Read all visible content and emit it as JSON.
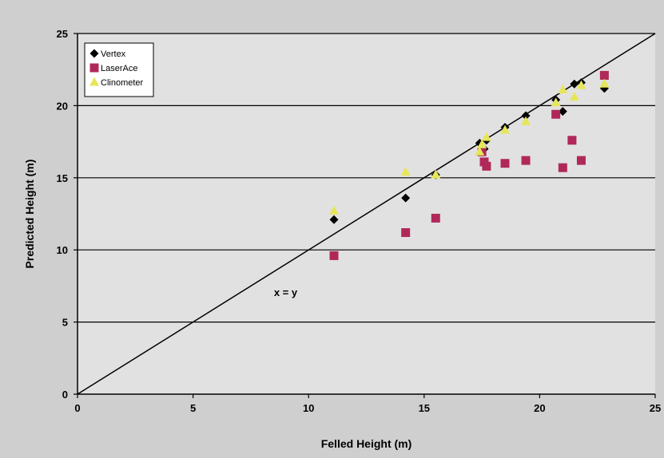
{
  "colors": {
    "outer_background": "#cfcfcf",
    "plot_background": "#e1e1e1",
    "gridline": "#000000",
    "axis": "#000000",
    "reference_line": "#000000"
  },
  "chart_data": {
    "type": "scatter",
    "title": "",
    "xlabel": "Felled Height (m)",
    "ylabel": "Predicted Height (m)",
    "xlim": [
      0,
      25
    ],
    "ylim": [
      0,
      25
    ],
    "xticks": [
      0,
      5,
      10,
      15,
      20,
      25
    ],
    "yticks": [
      0,
      5,
      10,
      15,
      20,
      25
    ],
    "grid": {
      "horizontal": true,
      "vertical": false
    },
    "legend_position": "top-left",
    "annotation": {
      "text": "x = y",
      "x": 8.5,
      "y": 6.8
    },
    "reference_line": {
      "from": [
        0,
        0
      ],
      "to": [
        25,
        25
      ]
    },
    "series": [
      {
        "name": "Vertex",
        "marker": "diamond",
        "color": "#000000",
        "points": [
          [
            11.1,
            12.1
          ],
          [
            14.2,
            13.6
          ],
          [
            15.5,
            15.2
          ],
          [
            17.4,
            17.4
          ],
          [
            17.6,
            17.0
          ],
          [
            17.7,
            17.6
          ],
          [
            18.5,
            18.5
          ],
          [
            19.4,
            19.3
          ],
          [
            20.7,
            20.4
          ],
          [
            21.0,
            19.6
          ],
          [
            21.5,
            21.5
          ],
          [
            21.8,
            21.6
          ],
          [
            22.8,
            21.2
          ]
        ]
      },
      {
        "name": "LaserAce",
        "marker": "square",
        "color": "#b0285a",
        "points": [
          [
            11.1,
            9.6
          ],
          [
            14.2,
            11.2
          ],
          [
            15.5,
            12.2
          ],
          [
            17.5,
            16.8
          ],
          [
            17.6,
            16.1
          ],
          [
            17.7,
            15.8
          ],
          [
            18.5,
            16.0
          ],
          [
            19.4,
            16.2
          ],
          [
            20.7,
            19.4
          ],
          [
            21.0,
            15.7
          ],
          [
            21.4,
            17.6
          ],
          [
            21.8,
            16.2
          ],
          [
            22.8,
            22.1
          ]
        ]
      },
      {
        "name": "Clinometer",
        "marker": "triangle",
        "color": "#e6e65a",
        "points": [
          [
            11.1,
            12.7
          ],
          [
            14.2,
            15.4
          ],
          [
            15.5,
            15.2
          ],
          [
            17.4,
            16.8
          ],
          [
            17.5,
            17.3
          ],
          [
            17.7,
            17.8
          ],
          [
            18.5,
            18.3
          ],
          [
            19.4,
            18.9
          ],
          [
            20.7,
            20.2
          ],
          [
            21.0,
            21.1
          ],
          [
            21.5,
            20.6
          ],
          [
            21.8,
            21.4
          ],
          [
            22.8,
            21.5
          ]
        ]
      }
    ]
  }
}
